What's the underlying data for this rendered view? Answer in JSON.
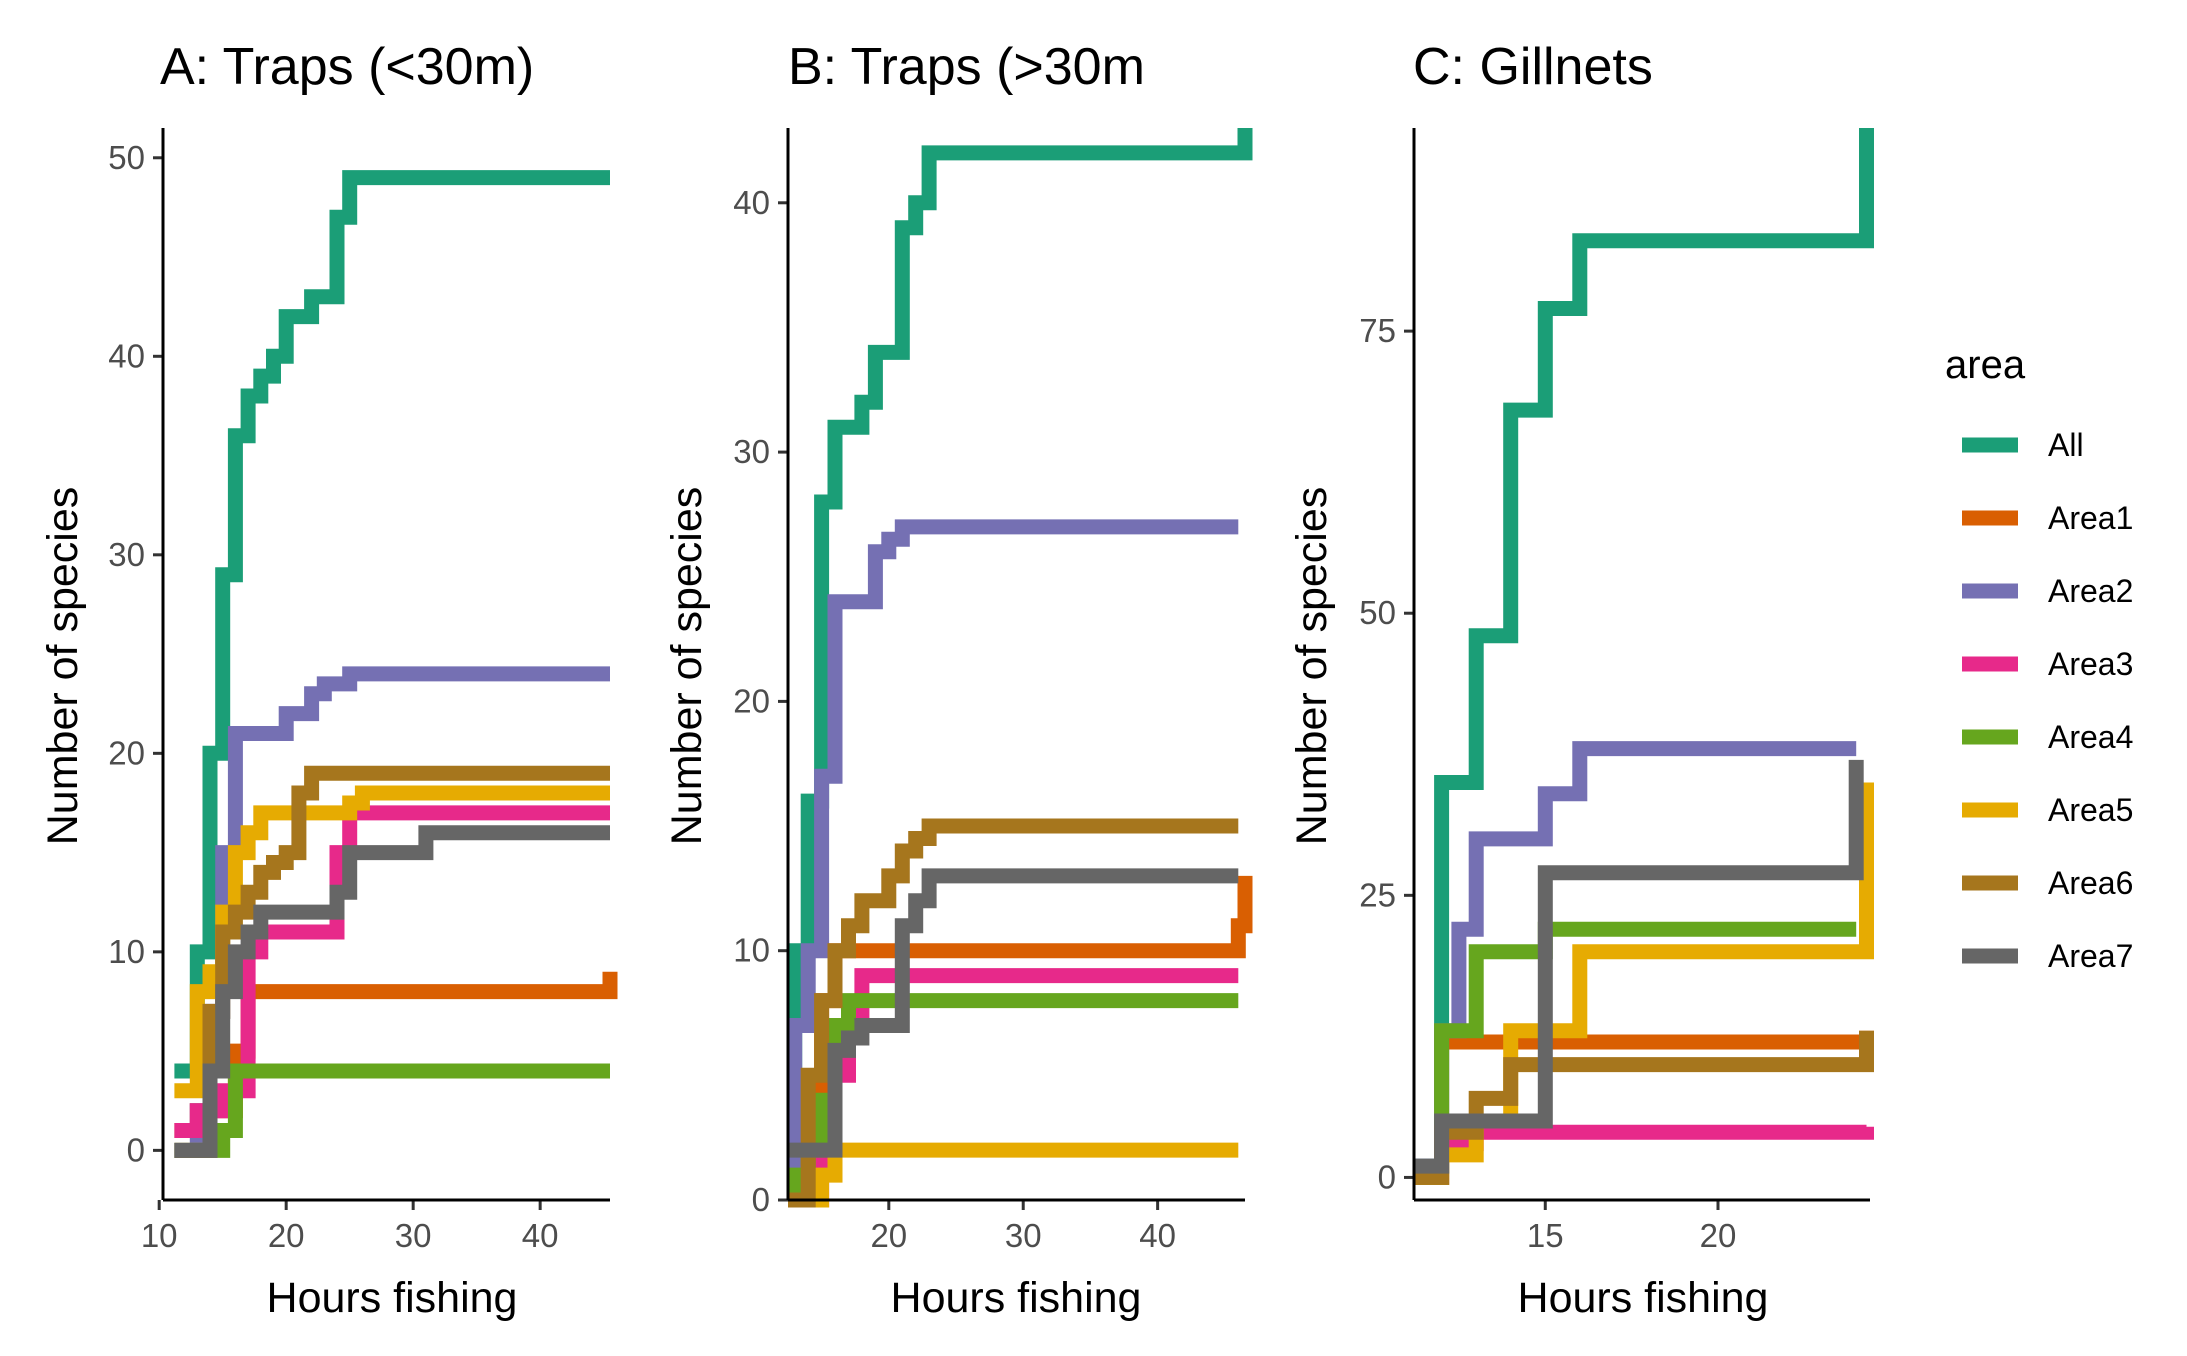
{
  "colors": {
    "All": "#1B9E77",
    "Area1": "#D95F02",
    "Area2": "#7570B3",
    "Area3": "#E7298A",
    "Area4": "#66A61E",
    "Area5": "#E6AB02",
    "Area6": "#A6761D",
    "Area7": "#666666"
  },
  "legend": {
    "title": "area",
    "position": "right",
    "entries": [
      "All",
      "Area1",
      "Area2",
      "Area3",
      "Area4",
      "Area5",
      "Area6",
      "Area7"
    ]
  },
  "chart_data": [
    {
      "type": "line",
      "step": true,
      "title": "A: Traps (<30m)",
      "xlabel": "Hours fishing",
      "ylabel": "Number of species",
      "xlim": [
        10.3,
        45.5
      ],
      "ylim": [
        -2.5,
        51.5
      ],
      "xticks": [
        10,
        20,
        30,
        40
      ],
      "yticks": [
        0,
        10,
        20,
        30,
        40,
        50
      ],
      "series": [
        {
          "name": "All",
          "x": [
            11.2,
            13,
            14,
            15,
            16,
            17,
            18,
            19,
            20,
            22,
            24,
            25,
            45.5
          ],
          "y": [
            4,
            10,
            20,
            29,
            36,
            38,
            39,
            40,
            42,
            43,
            47,
            49,
            49
          ]
        },
        {
          "name": "Area1",
          "x": [
            11.2,
            13,
            16,
            17,
            45,
            45.5
          ],
          "y": [
            1,
            2,
            5,
            8,
            8,
            9
          ]
        },
        {
          "name": "Area2",
          "x": [
            11.2,
            13,
            14,
            15,
            16,
            20,
            22,
            23,
            25,
            45.5
          ],
          "y": [
            0,
            2,
            7,
            15,
            21,
            22,
            23,
            23.5,
            24,
            24
          ]
        },
        {
          "name": "Area3",
          "x": [
            11.2,
            13,
            15,
            17,
            18,
            24,
            25,
            45.5
          ],
          "y": [
            1,
            2,
            3,
            10,
            11,
            15,
            17,
            17
          ]
        },
        {
          "name": "Area4",
          "x": [
            11.2,
            13,
            15,
            16,
            45.5
          ],
          "y": [
            0,
            0,
            1,
            4,
            4
          ]
        },
        {
          "name": "Area5",
          "x": [
            11.2,
            13,
            14,
            15,
            16,
            17,
            18,
            20,
            25,
            26,
            45.5
          ],
          "y": [
            3,
            8,
            9,
            12,
            15,
            16,
            17,
            17,
            17.5,
            18,
            18
          ]
        },
        {
          "name": "Area6",
          "x": [
            11.2,
            14,
            15,
            16,
            17,
            18,
            19,
            20,
            21,
            22,
            45.5
          ],
          "y": [
            0,
            7,
            11,
            12,
            13,
            14,
            14.5,
            15,
            18,
            19,
            19
          ]
        },
        {
          "name": "Area7",
          "x": [
            11.2,
            14,
            15,
            16,
            17,
            18,
            24,
            25,
            31,
            45.5
          ],
          "y": [
            0,
            4,
            8,
            10,
            11,
            12,
            13,
            15,
            16,
            16
          ]
        }
      ]
    },
    {
      "type": "line",
      "step": true,
      "title": "B: Traps (>30m",
      "xlabel": "Hours fishing",
      "ylabel": "Number of species",
      "xlim": [
        12.5,
        46.5
      ],
      "ylim": [
        0,
        43
      ],
      "xticks": [
        20,
        30,
        40
      ],
      "yticks": [
        0,
        10,
        20,
        30,
        40
      ],
      "series": [
        {
          "name": "All",
          "x": [
            12.5,
            13,
            14,
            15,
            16,
            18,
            19,
            20,
            21,
            22,
            23,
            46,
            46.5
          ],
          "y": [
            2,
            10,
            16,
            28,
            31,
            32,
            34,
            34,
            39,
            40,
            42,
            42,
            43
          ]
        },
        {
          "name": "Area1",
          "x": [
            12.5,
            14,
            15,
            16,
            45,
            46,
            46.5
          ],
          "y": [
            0,
            2,
            8,
            10,
            10,
            11,
            13
          ]
        },
        {
          "name": "Area2",
          "x": [
            12.5,
            13,
            14,
            15,
            16,
            19,
            20,
            21,
            46
          ],
          "y": [
            0,
            7,
            10,
            17,
            24,
            26,
            26.5,
            27,
            27
          ]
        },
        {
          "name": "Area3",
          "x": [
            12.5,
            15,
            16,
            17,
            18,
            46
          ],
          "y": [
            0,
            2,
            5,
            7,
            9,
            9
          ]
        },
        {
          "name": "Area4",
          "x": [
            12.5,
            13,
            14,
            15,
            16,
            17,
            46
          ],
          "y": [
            0,
            1,
            2,
            4,
            7,
            8,
            8
          ]
        },
        {
          "name": "Area5",
          "x": [
            12.5,
            15,
            16,
            46
          ],
          "y": [
            0,
            1,
            2,
            2
          ]
        },
        {
          "name": "Area6",
          "x": [
            12.5,
            14,
            15,
            16,
            17,
            18,
            20,
            21,
            22,
            23,
            46
          ],
          "y": [
            0,
            5,
            8,
            10,
            11,
            12,
            13,
            14,
            14.5,
            15,
            15
          ]
        },
        {
          "name": "Area7",
          "x": [
            12.5,
            15,
            16,
            17,
            18,
            21,
            22,
            23,
            46
          ],
          "y": [
            2,
            2,
            6,
            6.5,
            7,
            11,
            12,
            13,
            13
          ]
        }
      ]
    },
    {
      "type": "line",
      "step": true,
      "title": "C: Gillnets",
      "xlabel": "Hours fishing",
      "ylabel": "Number of species",
      "xlim": [
        11.2,
        24.4
      ],
      "ylim": [
        -2,
        93
      ],
      "xticks": [
        15,
        20
      ],
      "yticks": [
        0,
        25,
        50,
        75
      ],
      "series": [
        {
          "name": "All",
          "x": [
            11.2,
            12,
            13,
            14,
            15,
            16,
            24.3,
            24.3
          ],
          "y": [
            1,
            35,
            48,
            68,
            77,
            83,
            83,
            93
          ]
        },
        {
          "name": "Area1",
          "x": [
            11.2,
            12,
            24,
            24.3
          ],
          "y": [
            0,
            12,
            12,
            13
          ]
        },
        {
          "name": "Area2",
          "x": [
            11.2,
            12,
            12.5,
            13,
            14,
            15,
            16,
            24
          ],
          "y": [
            1,
            13,
            22,
            30,
            30,
            34,
            38,
            38
          ]
        },
        {
          "name": "Area3",
          "x": [
            11.2,
            12,
            13,
            14,
            24.3
          ],
          "y": [
            0,
            3,
            4,
            4,
            4.5
          ]
        },
        {
          "name": "Area4",
          "x": [
            11.2,
            12,
            13,
            14,
            15,
            24
          ],
          "y": [
            0,
            13,
            20,
            20,
            22,
            22
          ]
        },
        {
          "name": "Area5",
          "x": [
            11.2,
            12,
            13,
            14,
            16,
            24,
            24.3
          ],
          "y": [
            0,
            2,
            5,
            13,
            20,
            20,
            35
          ]
        },
        {
          "name": "Area6",
          "x": [
            11.2,
            12,
            13,
            14,
            24.3,
            24.3
          ],
          "y": [
            0,
            4,
            7,
            10,
            10,
            13
          ]
        },
        {
          "name": "Area7",
          "x": [
            11.2,
            12,
            14,
            15,
            24
          ],
          "y": [
            1,
            5,
            5,
            27,
            37
          ]
        }
      ]
    }
  ]
}
